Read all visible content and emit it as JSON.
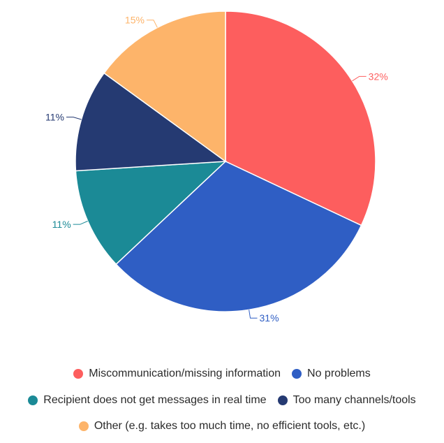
{
  "chart_data": {
    "type": "pie",
    "categories": [
      "Miscommunication/missing information",
      "No problems",
      "Recipient does not get messages in real time",
      "Too many channels/tools",
      "Other (e.g. takes too much time, no efficient tools, etc.)"
    ],
    "values": [
      32,
      31,
      11,
      11,
      15
    ],
    "data_labels": [
      "32%",
      "31%",
      "11%",
      "11%",
      "15%"
    ],
    "colors": [
      "#fd5e5e",
      "#2f5ec4",
      "#1b8a96",
      "#253a72",
      "#fdb46a"
    ],
    "legend_position": "bottom"
  }
}
